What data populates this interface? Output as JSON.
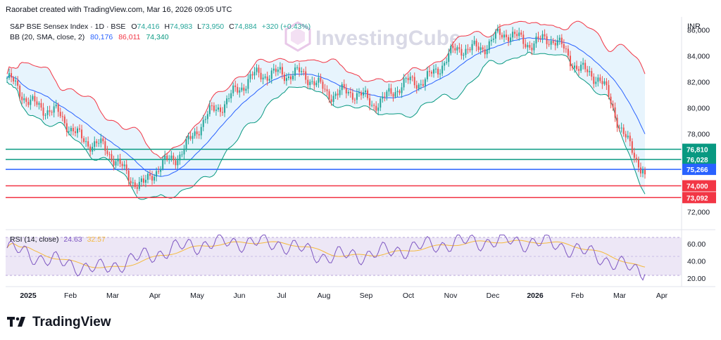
{
  "header": {
    "created_by": "Raorabet created with TradingView.com, Mar 16, 2026 09:05 UTC"
  },
  "watermark": "InvestingCube",
  "legend": {
    "symbol": "S&P BSE Sensex Index · 1D · BSE",
    "ohlc": {
      "o_label": "O",
      "o": "74,416",
      "h_label": "H",
      "h": "74,983",
      "l_label": "L",
      "l": "73,950",
      "c_label": "C",
      "c": "74,884",
      "chg": "+320 (+0.43%)"
    },
    "bb_label": "BB (20, SMA, close, 2)",
    "bb_values": [
      "80,176",
      "86,011",
      "74,340"
    ]
  },
  "currency": "INR",
  "colors": {
    "up": "#26a69a",
    "down": "#ef5350",
    "bb_basis": "#2962ff",
    "bb_upper": "#f23645",
    "bb_lower": "#089981",
    "bb_fill": "#e3f2fd",
    "rsi_line": "#7e57c2",
    "rsi_ma": "#f5b93b",
    "rsi_band": "#ede7f6",
    "teal_level": "#089981",
    "blue_level": "#2962ff",
    "red_level": "#f23645"
  },
  "price_axis": {
    "ticks": [
      "86,000",
      "84,000",
      "82,000",
      "80,000",
      "78,000",
      "72,000"
    ]
  },
  "level_tags": [
    {
      "value": 76810,
      "label": "76,810",
      "color": "#089981"
    },
    {
      "value": 76028,
      "label": "76,028",
      "color": "#089981"
    },
    {
      "value": 75266,
      "label": "75,266",
      "color": "#2962ff"
    },
    {
      "value": 74000,
      "label": "74,000",
      "color": "#f23645"
    },
    {
      "value": 73092,
      "label": "73,092",
      "color": "#f23645"
    }
  ],
  "rsi": {
    "label": "RSI (14, close)",
    "value": "24.63",
    "ma_value": "32.57",
    "ticks": [
      "60.00",
      "40.00",
      "20.00"
    ]
  },
  "x_labels": [
    "2025",
    "Feb",
    "Mar",
    "Apr",
    "May",
    "Jun",
    "Jul",
    "Aug",
    "Sep",
    "Oct",
    "Nov",
    "Dec",
    "2026",
    "Feb",
    "Mar",
    "Apr"
  ],
  "brand": "TradingView",
  "chart_data": {
    "type": "line",
    "title": "S&P BSE Sensex Index · 1D · BSE",
    "ylabel": "INR",
    "ylim": [
      71000,
      87000
    ],
    "x": [
      "2025-01",
      "2025-02",
      "2025-03",
      "2025-04",
      "2025-05",
      "2025-06",
      "2025-07",
      "2025-08",
      "2025-09",
      "2025-10",
      "2025-11",
      "2025-12",
      "2026-01",
      "2026-02",
      "2026-03"
    ],
    "series": [
      {
        "name": "close",
        "values": [
          82000,
          79500,
          77000,
          74000,
          77500,
          81500,
          83000,
          81500,
          80500,
          82000,
          84500,
          85500,
          85000,
          82000,
          74884
        ]
      }
    ],
    "levels": [
      76810,
      76028,
      75266,
      74000,
      73092
    ],
    "rsi_series": [
      55,
      40,
      30,
      45,
      58,
      62,
      60,
      45,
      48,
      56,
      62,
      63,
      60,
      45,
      24.63
    ]
  }
}
